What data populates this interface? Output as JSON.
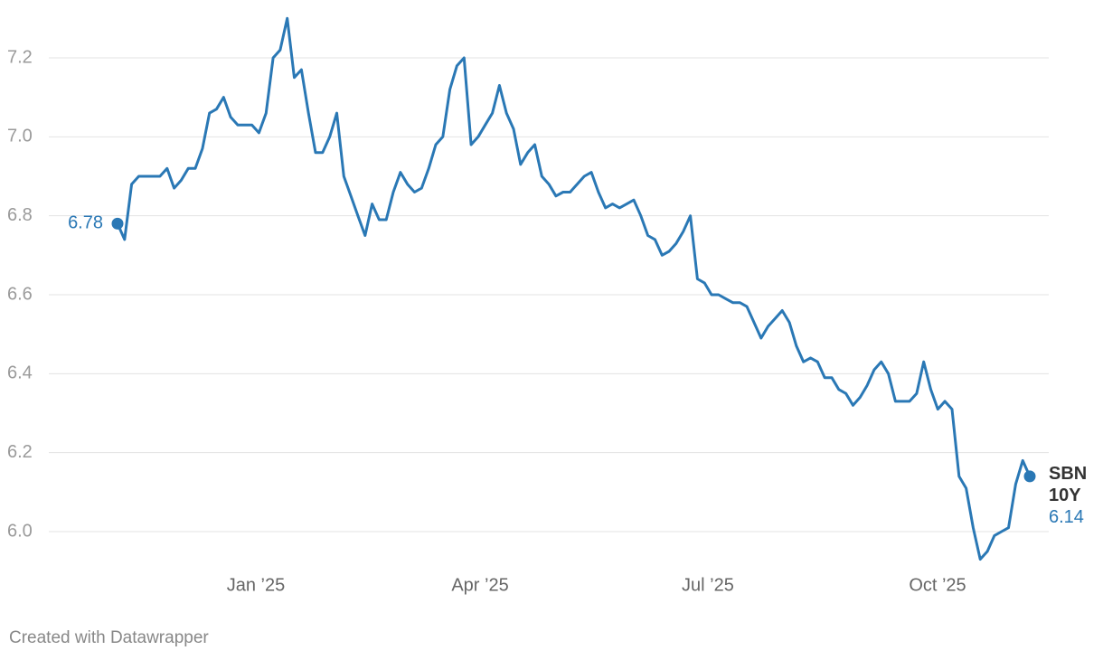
{
  "chart_data": {
    "type": "line",
    "series": [
      {
        "name": "SBN 10Y",
        "color": "#2a78b5",
        "values": [
          6.78,
          6.74,
          6.88,
          6.9,
          6.9,
          6.9,
          6.9,
          6.92,
          6.87,
          6.89,
          6.92,
          6.92,
          6.97,
          7.06,
          7.07,
          7.1,
          7.05,
          7.03,
          7.03,
          7.03,
          7.01,
          7.06,
          7.2,
          7.22,
          7.3,
          7.15,
          7.17,
          7.06,
          6.96,
          6.96,
          7.0,
          7.06,
          6.9,
          6.85,
          6.8,
          6.75,
          6.83,
          6.79,
          6.79,
          6.86,
          6.91,
          6.88,
          6.86,
          6.87,
          6.92,
          6.98,
          7.0,
          7.12,
          7.18,
          7.2,
          6.98,
          7.0,
          7.03,
          7.06,
          7.13,
          7.06,
          7.02,
          6.93,
          6.96,
          6.98,
          6.9,
          6.88,
          6.85,
          6.86,
          6.86,
          6.88,
          6.9,
          6.91,
          6.86,
          6.82,
          6.83,
          6.82,
          6.83,
          6.84,
          6.8,
          6.75,
          6.74,
          6.7,
          6.71,
          6.73,
          6.76,
          6.8,
          6.64,
          6.63,
          6.6,
          6.6,
          6.59,
          6.58,
          6.58,
          6.57,
          6.53,
          6.49,
          6.52,
          6.54,
          6.56,
          6.53,
          6.47,
          6.43,
          6.44,
          6.43,
          6.39,
          6.39,
          6.36,
          6.35,
          6.32,
          6.34,
          6.37,
          6.41,
          6.43,
          6.4,
          6.33,
          6.33,
          6.33,
          6.35,
          6.43,
          6.36,
          6.31,
          6.33,
          6.31,
          6.14,
          6.11,
          6.01,
          5.93,
          5.95,
          5.99,
          6.0,
          6.01,
          6.12,
          6.18,
          6.14
        ]
      }
    ],
    "xlim": [
      0,
      129
    ],
    "xticks": [
      {
        "value": 19.56,
        "label": "Jan ’25"
      },
      {
        "value": 51.27,
        "label": "Apr ’25"
      },
      {
        "value": 83.48,
        "label": "Jul ’25"
      },
      {
        "value": 115.96,
        "label": "Oct ’25"
      }
    ],
    "ylim": [
      5.9,
      7.3
    ],
    "yticks": [
      {
        "value": 6,
        "label": "6.0"
      },
      6.2,
      6.4,
      6.6,
      6.8,
      {
        "value": 7,
        "label": "7.0"
      },
      7.2
    ],
    "grid": true,
    "credit": "Created with Datawrapper"
  }
}
